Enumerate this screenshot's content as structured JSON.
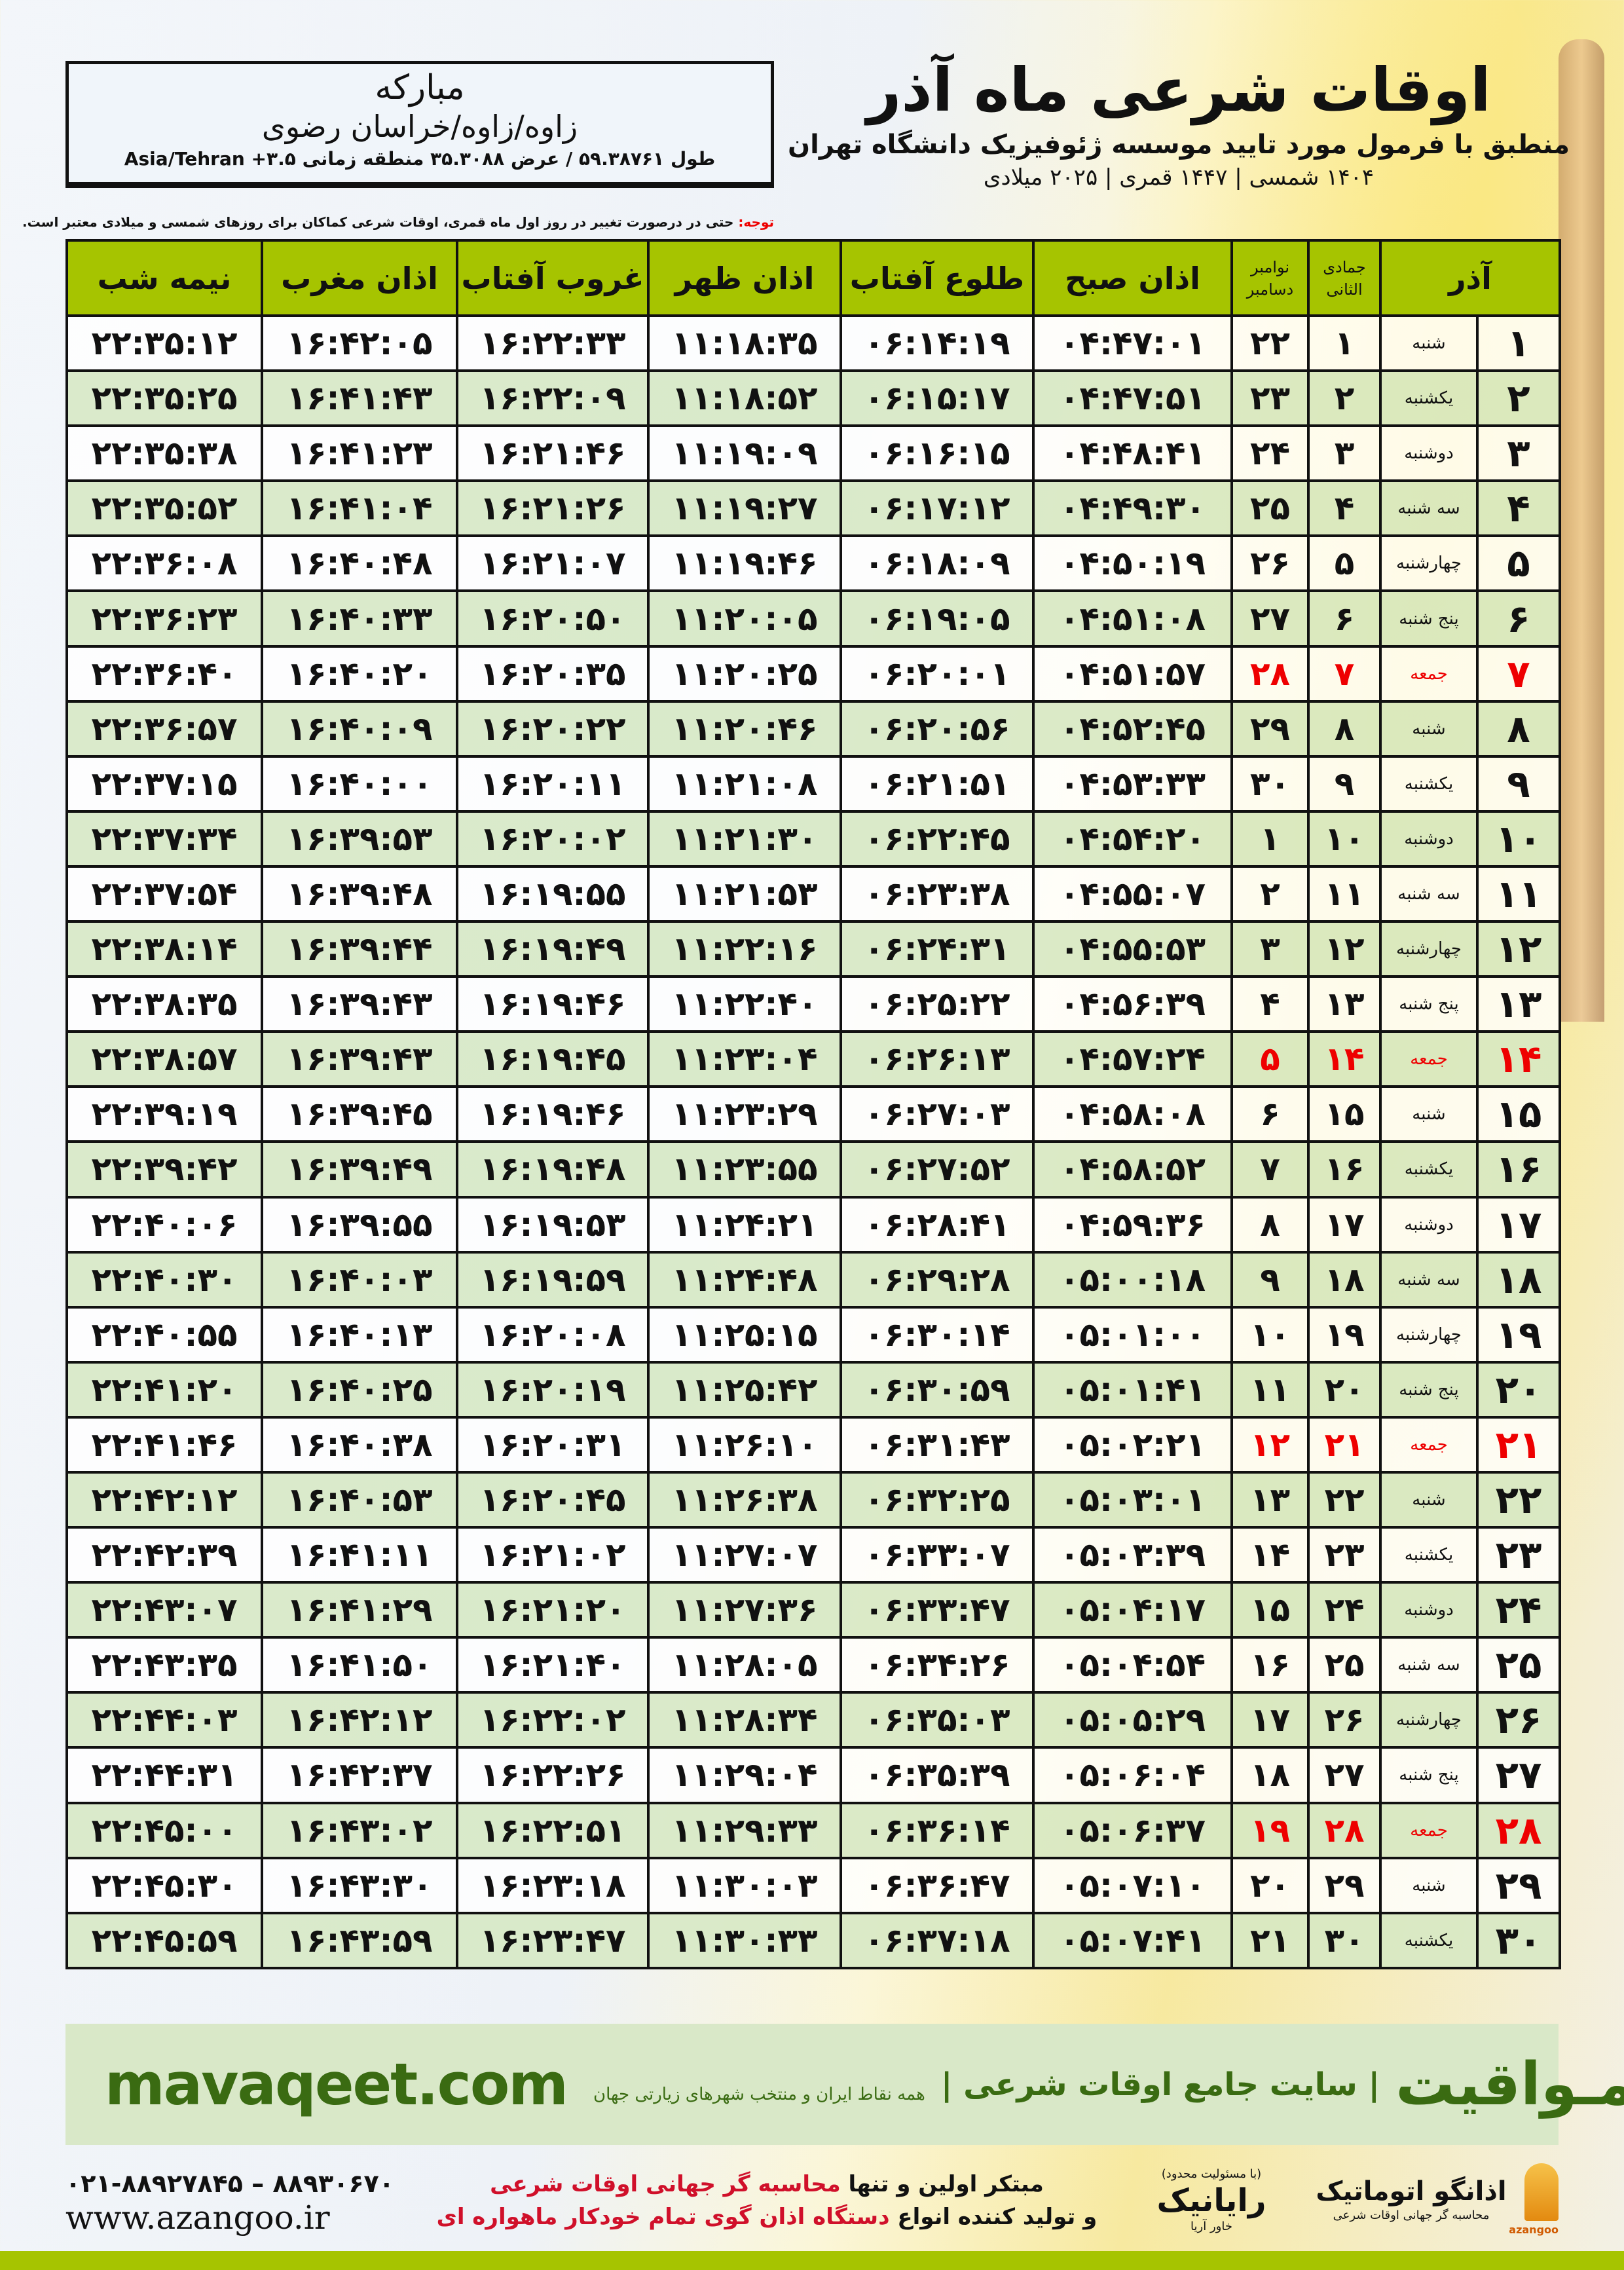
{
  "header": {
    "title": "اوقات شرعی ماه آذر",
    "subtitle": "منطبق با فرمول مورد تایید موسسه ژئوفیزیک دانشگاه تهران",
    "dateline": "۱۴۰۴ شمسی | ۱۴۴۷ قمری | ۲۰۲۵ میلادی"
  },
  "location": {
    "city": "مبارکه",
    "path": "زاوه/زاوه/خراسان رضوی",
    "coords": "طول ۵۹.۳۸۷۶۱ / عرض ۳۵.۳۰۸۸ منطقه زمانی ۳.۵+ Asia/Tehran"
  },
  "note": {
    "label": "توجه:",
    "text": " حتی در درصورت تغییر در روز اول ماه قمری، اوقات شرعی کماکان برای روزهای شمسی و میلادی معتبر است."
  },
  "colors": {
    "header_green": "#a6c400",
    "holiday_red": "#e00000",
    "brand_green": "#3a6b12"
  },
  "table": {
    "headers": {
      "month": "آذر",
      "qamari": "جمادی الثانی",
      "gregorian_top": "نوامبر",
      "gregorian_bottom": "دسامبر",
      "fajr": "اذان صبح",
      "sunrise": "طلوع آفتاب",
      "dhuhr": "اذان ظهر",
      "sunset": "غروب آفتاب",
      "maghrib": "اذان مغرب",
      "midnight": "نیمه شب"
    },
    "rows": [
      {
        "day": "۱",
        "weekday": "شنبه",
        "qamari": "۱",
        "gregorian": "۲۲",
        "holiday": false,
        "times": [
          "۰۴:۴۷:۰۱",
          "۰۶:۱۴:۱۹",
          "۱۱:۱۸:۳۵",
          "۱۶:۲۲:۳۳",
          "۱۶:۴۲:۰۵",
          "۲۲:۳۵:۱۲"
        ]
      },
      {
        "day": "۲",
        "weekday": "یکشنبه",
        "qamari": "۲",
        "gregorian": "۲۳",
        "holiday": false,
        "times": [
          "۰۴:۴۷:۵۱",
          "۰۶:۱۵:۱۷",
          "۱۱:۱۸:۵۲",
          "۱۶:۲۲:۰۹",
          "۱۶:۴۱:۴۳",
          "۲۲:۳۵:۲۵"
        ]
      },
      {
        "day": "۳",
        "weekday": "دوشنبه",
        "qamari": "۳",
        "gregorian": "۲۴",
        "holiday": false,
        "times": [
          "۰۴:۴۸:۴۱",
          "۰۶:۱۶:۱۵",
          "۱۱:۱۹:۰۹",
          "۱۶:۲۱:۴۶",
          "۱۶:۴۱:۲۳",
          "۲۲:۳۵:۳۸"
        ]
      },
      {
        "day": "۴",
        "weekday": "سه شنبه",
        "qamari": "۴",
        "gregorian": "۲۵",
        "holiday": false,
        "times": [
          "۰۴:۴۹:۳۰",
          "۰۶:۱۷:۱۲",
          "۱۱:۱۹:۲۷",
          "۱۶:۲۱:۲۶",
          "۱۶:۴۱:۰۴",
          "۲۲:۳۵:۵۲"
        ]
      },
      {
        "day": "۵",
        "weekday": "چهارشنبه",
        "qamari": "۵",
        "gregorian": "۲۶",
        "holiday": false,
        "times": [
          "۰۴:۵۰:۱۹",
          "۰۶:۱۸:۰۹",
          "۱۱:۱۹:۴۶",
          "۱۶:۲۱:۰۷",
          "۱۶:۴۰:۴۸",
          "۲۲:۳۶:۰۸"
        ]
      },
      {
        "day": "۶",
        "weekday": "پنج شنبه",
        "qamari": "۶",
        "gregorian": "۲۷",
        "holiday": false,
        "times": [
          "۰۴:۵۱:۰۸",
          "۰۶:۱۹:۰۵",
          "۱۱:۲۰:۰۵",
          "۱۶:۲۰:۵۰",
          "۱۶:۴۰:۳۳",
          "۲۲:۳۶:۲۳"
        ]
      },
      {
        "day": "۷",
        "weekday": "جمعه",
        "qamari": "۷",
        "gregorian": "۲۸",
        "holiday": true,
        "times": [
          "۰۴:۵۱:۵۷",
          "۰۶:۲۰:۰۱",
          "۱۱:۲۰:۲۵",
          "۱۶:۲۰:۳۵",
          "۱۶:۴۰:۲۰",
          "۲۲:۳۶:۴۰"
        ]
      },
      {
        "day": "۸",
        "weekday": "شنبه",
        "qamari": "۸",
        "gregorian": "۲۹",
        "holiday": false,
        "times": [
          "۰۴:۵۲:۴۵",
          "۰۶:۲۰:۵۶",
          "۱۱:۲۰:۴۶",
          "۱۶:۲۰:۲۲",
          "۱۶:۴۰:۰۹",
          "۲۲:۳۶:۵۷"
        ]
      },
      {
        "day": "۹",
        "weekday": "یکشنبه",
        "qamari": "۹",
        "gregorian": "۳۰",
        "holiday": false,
        "times": [
          "۰۴:۵۳:۳۳",
          "۰۶:۲۱:۵۱",
          "۱۱:۲۱:۰۸",
          "۱۶:۲۰:۱۱",
          "۱۶:۴۰:۰۰",
          "۲۲:۳۷:۱۵"
        ]
      },
      {
        "day": "۱۰",
        "weekday": "دوشنبه",
        "qamari": "۱۰",
        "gregorian": "۱",
        "holiday": false,
        "times": [
          "۰۴:۵۴:۲۰",
          "۰۶:۲۲:۴۵",
          "۱۱:۲۱:۳۰",
          "۱۶:۲۰:۰۲",
          "۱۶:۳۹:۵۳",
          "۲۲:۳۷:۳۴"
        ]
      },
      {
        "day": "۱۱",
        "weekday": "سه شنبه",
        "qamari": "۱۱",
        "gregorian": "۲",
        "holiday": false,
        "times": [
          "۰۴:۵۵:۰۷",
          "۰۶:۲۳:۳۸",
          "۱۱:۲۱:۵۳",
          "۱۶:۱۹:۵۵",
          "۱۶:۳۹:۴۸",
          "۲۲:۳۷:۵۴"
        ]
      },
      {
        "day": "۱۲",
        "weekday": "چهارشنبه",
        "qamari": "۱۲",
        "gregorian": "۳",
        "holiday": false,
        "times": [
          "۰۴:۵۵:۵۳",
          "۰۶:۲۴:۳۱",
          "۱۱:۲۲:۱۶",
          "۱۶:۱۹:۴۹",
          "۱۶:۳۹:۴۴",
          "۲۲:۳۸:۱۴"
        ]
      },
      {
        "day": "۱۳",
        "weekday": "پنج شنبه",
        "qamari": "۱۳",
        "gregorian": "۴",
        "holiday": false,
        "times": [
          "۰۴:۵۶:۳۹",
          "۰۶:۲۵:۲۲",
          "۱۱:۲۲:۴۰",
          "۱۶:۱۹:۴۶",
          "۱۶:۳۹:۴۳",
          "۲۲:۳۸:۳۵"
        ]
      },
      {
        "day": "۱۴",
        "weekday": "جمعه",
        "qamari": "۱۴",
        "gregorian": "۵",
        "holiday": true,
        "times": [
          "۰۴:۵۷:۲۴",
          "۰۶:۲۶:۱۳",
          "۱۱:۲۳:۰۴",
          "۱۶:۱۹:۴۵",
          "۱۶:۳۹:۴۳",
          "۲۲:۳۸:۵۷"
        ]
      },
      {
        "day": "۱۵",
        "weekday": "شنبه",
        "qamari": "۱۵",
        "gregorian": "۶",
        "holiday": false,
        "times": [
          "۰۴:۵۸:۰۸",
          "۰۶:۲۷:۰۳",
          "۱۱:۲۳:۲۹",
          "۱۶:۱۹:۴۶",
          "۱۶:۳۹:۴۵",
          "۲۲:۳۹:۱۹"
        ]
      },
      {
        "day": "۱۶",
        "weekday": "یکشنبه",
        "qamari": "۱۶",
        "gregorian": "۷",
        "holiday": false,
        "times": [
          "۰۴:۵۸:۵۲",
          "۰۶:۲۷:۵۲",
          "۱۱:۲۳:۵۵",
          "۱۶:۱۹:۴۸",
          "۱۶:۳۹:۴۹",
          "۲۲:۳۹:۴۲"
        ]
      },
      {
        "day": "۱۷",
        "weekday": "دوشنبه",
        "qamari": "۱۷",
        "gregorian": "۸",
        "holiday": false,
        "times": [
          "۰۴:۵۹:۳۶",
          "۰۶:۲۸:۴۱",
          "۱۱:۲۴:۲۱",
          "۱۶:۱۹:۵۳",
          "۱۶:۳۹:۵۵",
          "۲۲:۴۰:۰۶"
        ]
      },
      {
        "day": "۱۸",
        "weekday": "سه شنبه",
        "qamari": "۱۸",
        "gregorian": "۹",
        "holiday": false,
        "times": [
          "۰۵:۰۰:۱۸",
          "۰۶:۲۹:۲۸",
          "۱۱:۲۴:۴۸",
          "۱۶:۱۹:۵۹",
          "۱۶:۴۰:۰۳",
          "۲۲:۴۰:۳۰"
        ]
      },
      {
        "day": "۱۹",
        "weekday": "چهارشنبه",
        "qamari": "۱۹",
        "gregorian": "۱۰",
        "holiday": false,
        "times": [
          "۰۵:۰۱:۰۰",
          "۰۶:۳۰:۱۴",
          "۱۱:۲۵:۱۵",
          "۱۶:۲۰:۰۸",
          "۱۶:۴۰:۱۳",
          "۲۲:۴۰:۵۵"
        ]
      },
      {
        "day": "۲۰",
        "weekday": "پنج شنبه",
        "qamari": "۲۰",
        "gregorian": "۱۱",
        "holiday": false,
        "times": [
          "۰۵:۰۱:۴۱",
          "۰۶:۳۰:۵۹",
          "۱۱:۲۵:۴۲",
          "۱۶:۲۰:۱۹",
          "۱۶:۴۰:۲۵",
          "۲۲:۴۱:۲۰"
        ]
      },
      {
        "day": "۲۱",
        "weekday": "جمعه",
        "qamari": "۲۱",
        "gregorian": "۱۲",
        "holiday": true,
        "times": [
          "۰۵:۰۲:۲۱",
          "۰۶:۳۱:۴۳",
          "۱۱:۲۶:۱۰",
          "۱۶:۲۰:۳۱",
          "۱۶:۴۰:۳۸",
          "۲۲:۴۱:۴۶"
        ]
      },
      {
        "day": "۲۲",
        "weekday": "شنبه",
        "qamari": "۲۲",
        "gregorian": "۱۳",
        "holiday": false,
        "times": [
          "۰۵:۰۳:۰۱",
          "۰۶:۳۲:۲۵",
          "۱۱:۲۶:۳۸",
          "۱۶:۲۰:۴۵",
          "۱۶:۴۰:۵۳",
          "۲۲:۴۲:۱۲"
        ]
      },
      {
        "day": "۲۳",
        "weekday": "یکشنبه",
        "qamari": "۲۳",
        "gregorian": "۱۴",
        "holiday": false,
        "times": [
          "۰۵:۰۳:۳۹",
          "۰۶:۳۳:۰۷",
          "۱۱:۲۷:۰۷",
          "۱۶:۲۱:۰۲",
          "۱۶:۴۱:۱۱",
          "۲۲:۴۲:۳۹"
        ]
      },
      {
        "day": "۲۴",
        "weekday": "دوشنبه",
        "qamari": "۲۴",
        "gregorian": "۱۵",
        "holiday": false,
        "times": [
          "۰۵:۰۴:۱۷",
          "۰۶:۳۳:۴۷",
          "۱۱:۲۷:۳۶",
          "۱۶:۲۱:۲۰",
          "۱۶:۴۱:۲۹",
          "۲۲:۴۳:۰۷"
        ]
      },
      {
        "day": "۲۵",
        "weekday": "سه شنبه",
        "qamari": "۲۵",
        "gregorian": "۱۶",
        "holiday": false,
        "times": [
          "۰۵:۰۴:۵۴",
          "۰۶:۳۴:۲۶",
          "۱۱:۲۸:۰۵",
          "۱۶:۲۱:۴۰",
          "۱۶:۴۱:۵۰",
          "۲۲:۴۳:۳۵"
        ]
      },
      {
        "day": "۲۶",
        "weekday": "چهارشنبه",
        "qamari": "۲۶",
        "gregorian": "۱۷",
        "holiday": false,
        "times": [
          "۰۵:۰۵:۲۹",
          "۰۶:۳۵:۰۳",
          "۱۱:۲۸:۳۴",
          "۱۶:۲۲:۰۲",
          "۱۶:۴۲:۱۲",
          "۲۲:۴۴:۰۳"
        ]
      },
      {
        "day": "۲۷",
        "weekday": "پنج شنبه",
        "qamari": "۲۷",
        "gregorian": "۱۸",
        "holiday": false,
        "times": [
          "۰۵:۰۶:۰۴",
          "۰۶:۳۵:۳۹",
          "۱۱:۲۹:۰۴",
          "۱۶:۲۲:۲۶",
          "۱۶:۴۲:۳۷",
          "۲۲:۴۴:۳۱"
        ]
      },
      {
        "day": "۲۸",
        "weekday": "جمعه",
        "qamari": "۲۸",
        "gregorian": "۱۹",
        "holiday": true,
        "times": [
          "۰۵:۰۶:۳۷",
          "۰۶:۳۶:۱۴",
          "۱۱:۲۹:۳۳",
          "۱۶:۲۲:۵۱",
          "۱۶:۴۳:۰۲",
          "۲۲:۴۵:۰۰"
        ]
      },
      {
        "day": "۲۹",
        "weekday": "شنبه",
        "qamari": "۲۹",
        "gregorian": "۲۰",
        "holiday": false,
        "times": [
          "۰۵:۰۷:۱۰",
          "۰۶:۳۶:۴۷",
          "۱۱:۳۰:۰۳",
          "۱۶:۲۳:۱۸",
          "۱۶:۴۳:۳۰",
          "۲۲:۴۵:۳۰"
        ]
      },
      {
        "day": "۳۰",
        "weekday": "یکشنبه",
        "qamari": "۳۰",
        "gregorian": "۲۱",
        "holiday": false,
        "times": [
          "۰۵:۰۷:۴۱",
          "۰۶:۳۷:۱۸",
          "۱۱:۳۰:۳۳",
          "۱۶:۲۳:۴۷",
          "۱۶:۴۳:۵۹",
          "۲۲:۴۵:۵۹"
        ]
      }
    ]
  },
  "banner": {
    "site": "mavaqeet.com",
    "brand": "مـواقیت",
    "desc": "| سایت جامع اوقات شرعی |",
    "desc2": "همه نقاط ایران و منتخب شهرهای زیارتی جهان"
  },
  "footer": {
    "phone": "۰۲۱-۸۸۹۲۷۸۴۵ – ۸۸۹۳۰۶۷۰",
    "web": "www.azangoo.ir",
    "promo_line1_a": "مبتکر اولین و تنها ",
    "promo_line1_b": "محاسبه گر جهانی اوقات شرعی",
    "promo_line2_a": "و تولید کننده انواع ",
    "promo_line2_b": "دستگاه اذان گوی تمام خودکار ماهواره ای",
    "logo_rayanik": "رایانیک",
    "logo_rayanik_sub": "خاور آریا",
    "logo_rayanik_tag": "(با مسئولیت محدود)",
    "logo_azangoo": "اذانگو اتوماتیک",
    "logo_azangoo_sub": "محاسبه گر جهانی اوقات شرعی",
    "logo_azangoo_en": "azangoo"
  }
}
